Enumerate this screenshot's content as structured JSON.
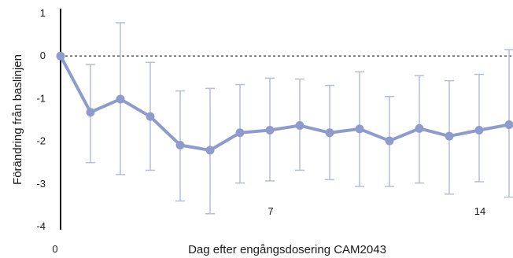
{
  "chart_data": {
    "type": "line",
    "xlabel": "Dag efter engångsdosering CAM2043",
    "ylabel": "Förändring från baslinjen",
    "ylim": [
      -4,
      1
    ],
    "xlim": [
      0,
      15
    ],
    "y_ticks": [
      "1",
      "0",
      "-1",
      "-2",
      "-3",
      "-4"
    ],
    "y_tick_values": [
      1,
      0,
      -1,
      -2,
      -3,
      -4
    ],
    "x_ticks": [
      "0",
      "7",
      "14"
    ],
    "x_tick_values": [
      0,
      7,
      14
    ],
    "reference_line": 0,
    "grid": false,
    "colors": {
      "line": "#8d9ccc",
      "error_bar": "#b4bedd",
      "axis": "#111111",
      "reference": "#444444"
    },
    "series": [
      {
        "x": [
          0,
          1,
          2,
          3,
          4,
          5,
          6,
          7,
          8,
          9,
          10,
          11,
          12,
          13,
          14,
          15
        ],
        "values": [
          0,
          -1.32,
          -1.01,
          -1.42,
          -2.09,
          -2.21,
          -1.8,
          -1.74,
          -1.63,
          -1.8,
          -1.71,
          -1.99,
          -1.7,
          -1.88,
          -1.74,
          -1.61
        ],
        "error_upper": [
          0,
          -0.2,
          0.78,
          -0.15,
          -0.82,
          -0.76,
          -0.67,
          -0.52,
          -0.54,
          -0.69,
          -0.37,
          -0.95,
          -0.46,
          -0.58,
          -0.43,
          0.15
        ],
        "error_lower": [
          0,
          -2.5,
          -2.78,
          -2.68,
          -3.4,
          -3.7,
          -2.98,
          -2.93,
          -2.68,
          -2.9,
          -3.06,
          -3.06,
          -2.98,
          -3.24,
          -2.95,
          -3.31
        ]
      }
    ]
  }
}
